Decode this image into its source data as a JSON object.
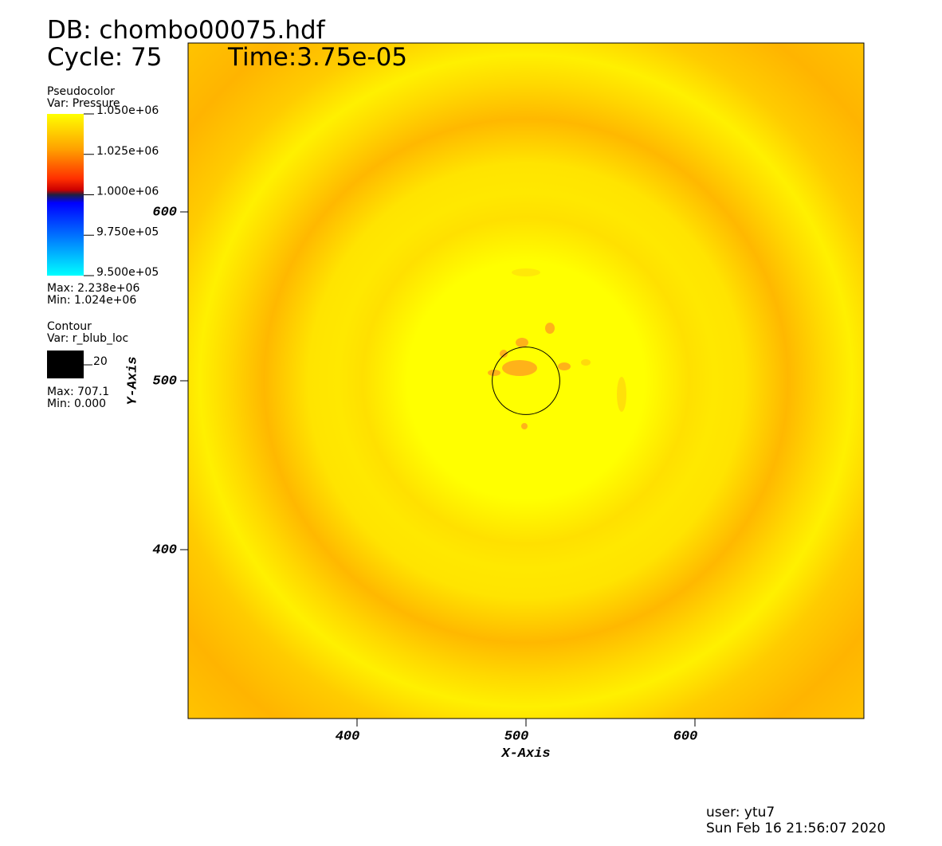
{
  "chart_data": {
    "type": "pseudocolor",
    "db_label": "DB: chombo00075.hdf",
    "cycle_label": "Cycle: 75",
    "time_label": "Time:3.75e-05",
    "xlabel": "X-Axis",
    "ylabel": "Y-Axis",
    "xlim": [
      300,
      700
    ],
    "ylim": [
      300,
      700
    ],
    "xticks": [
      400,
      500,
      600
    ],
    "yticks": [
      400,
      500,
      600
    ],
    "pseudocolor": {
      "title": "Pseudocolor",
      "var": "Var: Pressure",
      "ticks": [
        {
          "value": 1050000,
          "label": "1.050e+06"
        },
        {
          "value": 1025000,
          "label": "1.025e+06"
        },
        {
          "value": 1000000,
          "label": "1.000e+06"
        },
        {
          "value": 975000,
          "label": "9.750e+05"
        },
        {
          "value": 950000,
          "label": "9.500e+05"
        }
      ],
      "max": "Max: 2.238e+06",
      "min": "Min:  1.024e+06"
    },
    "contour": {
      "title": "Contour",
      "var": "Var: r_blub_loc",
      "levels": [
        20
      ],
      "max": "Max: 707.1",
      "min": "Min: 0.000"
    },
    "user": "user: ytu7",
    "date": "Sun Feb 16 21:56:07 2020"
  }
}
